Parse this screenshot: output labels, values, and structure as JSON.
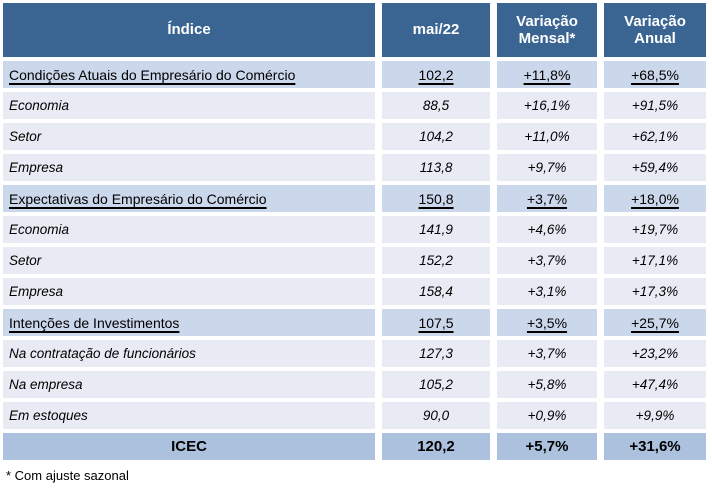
{
  "colors": {
    "header_bg": "#3A6492",
    "header_text": "#FFFFFF",
    "section_bg": "#CBD7EA",
    "sub_bg": "#E9EBF4",
    "total_bg": "#ABC1DD",
    "text": "#000000"
  },
  "chart_data": {
    "type": "table",
    "title": "",
    "columns": [
      "Índice",
      "mai/22",
      "Variação Mensal*",
      "Variação Anual"
    ],
    "rows": [
      {
        "type": "section",
        "label": "Condições Atuais do Empresário do Comércio",
        "value": "102,2",
        "monthly": "+11,8%",
        "annual": "+68,5%"
      },
      {
        "type": "sub",
        "label": "Economia",
        "value": "88,5",
        "monthly": "+16,1%",
        "annual": "+91,5%"
      },
      {
        "type": "sub",
        "label": "Setor",
        "value": "104,2",
        "monthly": "+11,0%",
        "annual": "+62,1%"
      },
      {
        "type": "sub",
        "label": "Empresa",
        "value": "113,8",
        "monthly": "+9,7%",
        "annual": "+59,4%"
      },
      {
        "type": "section",
        "label": "Expectativas do Empresário do Comércio",
        "value": "150,8",
        "monthly": "+3,7%",
        "annual": "+18,0%"
      },
      {
        "type": "sub",
        "label": "Economia",
        "value": "141,9",
        "monthly": "+4,6%",
        "annual": "+19,7%"
      },
      {
        "type": "sub",
        "label": "Setor",
        "value": "152,2",
        "monthly": "+3,7%",
        "annual": "+17,1%"
      },
      {
        "type": "sub",
        "label": "Empresa",
        "value": "158,4",
        "monthly": "+3,1%",
        "annual": "+17,3%"
      },
      {
        "type": "section",
        "label": "Intenções de Investimentos",
        "value": "107,5",
        "monthly": "+3,5%",
        "annual": "+25,7%"
      },
      {
        "type": "sub",
        "label": "Na contratação de funcionários",
        "value": "127,3",
        "monthly": "+3,7%",
        "annual": "+23,2%"
      },
      {
        "type": "sub",
        "label": "Na empresa",
        "value": "105,2",
        "monthly": "+5,8%",
        "annual": "+47,4%"
      },
      {
        "type": "sub",
        "label": "Em estoques",
        "value": "90,0",
        "monthly": "+0,9%",
        "annual": "+9,9%"
      },
      {
        "type": "total",
        "label": "ICEC",
        "value": "120,2",
        "monthly": "+5,7%",
        "annual": "+31,6%"
      }
    ],
    "footnote": "* Com ajuste sazonal"
  }
}
